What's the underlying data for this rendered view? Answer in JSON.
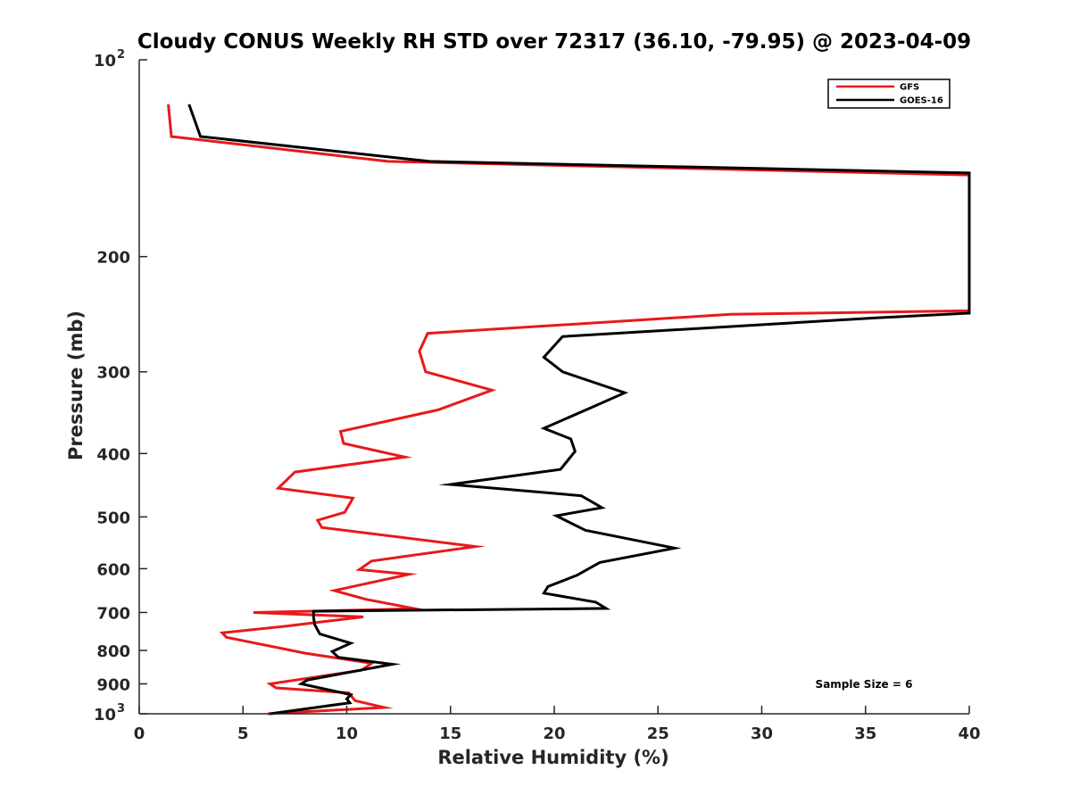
{
  "chart_data": {
    "type": "line",
    "title": "Cloudy CONUS Weekly RH STD over 72317 (36.10, -79.95) @ 2023-04-09",
    "xlabel": "Relative Humidity (%)",
    "ylabel": "Pressure (mb)",
    "xlim": [
      0,
      40
    ],
    "ylim": [
      100,
      1000
    ],
    "y_scale": "log",
    "y_reversed": true,
    "x_ticks": [
      "0",
      "5",
      "10",
      "15",
      "20",
      "25",
      "30",
      "35",
      "40"
    ],
    "y_ticks": [
      {
        "value": 100,
        "base": "10",
        "exp": "2"
      },
      {
        "value": 200,
        "label": "200"
      },
      {
        "value": 300,
        "label": "300"
      },
      {
        "value": 400,
        "label": "400"
      },
      {
        "value": 500,
        "label": "500"
      },
      {
        "value": 600,
        "label": "600"
      },
      {
        "value": 700,
        "label": "700"
      },
      {
        "value": 800,
        "label": "800"
      },
      {
        "value": 900,
        "label": "900"
      },
      {
        "value": 1000,
        "base": "10",
        "exp": "3"
      }
    ],
    "legend_position": "top-right",
    "annotation": "Sample Size = 6",
    "series": [
      {
        "name": "GFS",
        "color": "#e8191b",
        "points": [
          [
            1.4,
            117
          ],
          [
            1.55,
            131
          ],
          [
            12.0,
            143
          ],
          [
            40,
            150
          ],
          [
            40,
            242
          ],
          [
            28.5,
            245
          ],
          [
            13.9,
            262
          ],
          [
            13.5,
            279
          ],
          [
            13.8,
            300
          ],
          [
            17.0,
            320
          ],
          [
            14.4,
            343
          ],
          [
            9.7,
            370
          ],
          [
            9.85,
            386
          ],
          [
            12.8,
            405
          ],
          [
            7.5,
            427
          ],
          [
            6.7,
            452
          ],
          [
            10.3,
            468
          ],
          [
            9.9,
            492
          ],
          [
            8.6,
            506
          ],
          [
            8.8,
            519
          ],
          [
            16.2,
            555
          ],
          [
            11.2,
            584
          ],
          [
            10.6,
            602
          ],
          [
            13.0,
            612
          ],
          [
            9.4,
            648
          ],
          [
            10.9,
            668
          ],
          [
            13.3,
            691
          ],
          [
            5.5,
            700
          ],
          [
            10.8,
            711
          ],
          [
            7.0,
            735
          ],
          [
            4.0,
            752
          ],
          [
            4.2,
            764
          ],
          [
            8.0,
            808
          ],
          [
            11.2,
            837
          ],
          [
            10.7,
            858
          ],
          [
            6.3,
            900
          ],
          [
            6.6,
            913
          ],
          [
            10.1,
            929
          ],
          [
            10.4,
            955
          ],
          [
            11.8,
            978
          ],
          [
            6.2,
            1000
          ]
        ]
      },
      {
        "name": "GOES-16",
        "color": "#000000",
        "points": [
          [
            2.4,
            117
          ],
          [
            2.95,
            131
          ],
          [
            14.0,
            143
          ],
          [
            40,
            149
          ],
          [
            40,
            244
          ],
          [
            35.6,
            248
          ],
          [
            20.4,
            265
          ],
          [
            19.5,
            285
          ],
          [
            20.4,
            300
          ],
          [
            23.4,
            323
          ],
          [
            21.8,
            340
          ],
          [
            19.5,
            366
          ],
          [
            20.8,
            380
          ],
          [
            21.0,
            397
          ],
          [
            20.3,
            423
          ],
          [
            15.0,
            446
          ],
          [
            21.3,
            464
          ],
          [
            22.3,
            484
          ],
          [
            20.1,
            498
          ],
          [
            21.5,
            524
          ],
          [
            25.8,
            558
          ],
          [
            22.2,
            587
          ],
          [
            21.1,
            614
          ],
          [
            19.7,
            639
          ],
          [
            19.5,
            654
          ],
          [
            22.0,
            675
          ],
          [
            22.5,
            690
          ],
          [
            8.4,
            697
          ],
          [
            8.4,
            711
          ],
          [
            8.45,
            730
          ],
          [
            8.7,
            755
          ],
          [
            10.2,
            780
          ],
          [
            9.3,
            803
          ],
          [
            9.6,
            820
          ],
          [
            12.2,
            840
          ],
          [
            8.1,
            888
          ],
          [
            7.8,
            900
          ],
          [
            10.2,
            935
          ],
          [
            10.0,
            949
          ],
          [
            10.15,
            962
          ],
          [
            6.3,
            1000
          ]
        ]
      }
    ]
  }
}
